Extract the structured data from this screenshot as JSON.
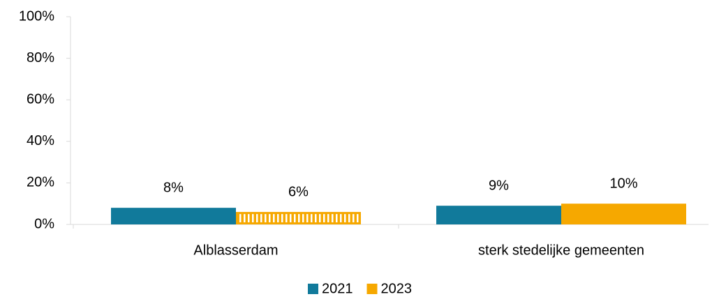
{
  "chart_data": {
    "type": "bar",
    "categories": [
      "Alblasserdam",
      "sterk stedelijke gemeenten"
    ],
    "series": [
      {
        "name": "2021",
        "color": "#117a9b",
        "values": [
          8,
          9
        ],
        "value_labels": [
          "8%",
          "9%"
        ]
      },
      {
        "name": "2023",
        "color": "#f6a800",
        "values": [
          6,
          10
        ],
        "value_labels": [
          "6%",
          "10%"
        ],
        "hatch": [
          true,
          false
        ]
      }
    ],
    "ylim": [
      0,
      100
    ],
    "yticks": [
      {
        "value": 0,
        "label": "0%"
      },
      {
        "value": 20,
        "label": "20%"
      },
      {
        "value": 40,
        "label": "40%"
      },
      {
        "value": 60,
        "label": "60%"
      },
      {
        "value": 80,
        "label": "80%"
      },
      {
        "value": 100,
        "label": "100%"
      }
    ],
    "grid": false,
    "legend": "bottom"
  }
}
